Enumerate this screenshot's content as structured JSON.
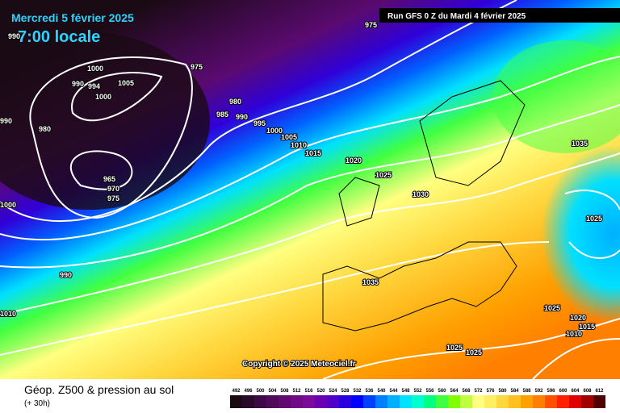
{
  "header": {
    "date": "Mercredi 5 février 2025",
    "time": "7:00 locale",
    "run": "Run GFS 0 Z du Mardi 4 février 2025"
  },
  "copyright": "Copyright © 2025 Meteociel.fr",
  "footer": {
    "title": "Géop. Z500 & pression au sol",
    "lead": "(+ 30h)"
  },
  "isobar_labels": [
    "990",
    "975",
    "1000",
    "975",
    "990",
    "994",
    "1005",
    "1000",
    "990",
    "980",
    "980",
    "985",
    "990",
    "995",
    "1000",
    "1005",
    "1010",
    "1015",
    "1020",
    "1025",
    "1030",
    "965",
    "970",
    "975",
    "1000",
    "1035",
    "1025",
    "990",
    "1035",
    "1010",
    "1025",
    "1020",
    "1015",
    "1010",
    "1025",
    "1025"
  ],
  "legend": {
    "values": [
      492,
      496,
      500,
      504,
      508,
      512,
      516,
      520,
      524,
      528,
      532,
      536,
      540,
      544,
      548,
      552,
      556,
      560,
      564,
      568,
      572,
      576,
      580,
      584,
      588,
      592,
      596,
      600,
      604,
      608,
      612
    ],
    "colors": [
      "#1a0a14",
      "#2a0a2a",
      "#3d0a45",
      "#4f0a5a",
      "#600a70",
      "#700a85",
      "#7a0a9a",
      "#6a00b0",
      "#5000c8",
      "#2800e0",
      "#0000ff",
      "#0040ff",
      "#0080ff",
      "#00b0ff",
      "#00e0ff",
      "#00ffd0",
      "#00ff80",
      "#40ff40",
      "#80ff00",
      "#c0ff40",
      "#ffff80",
      "#ffee60",
      "#ffd840",
      "#ffc020",
      "#ffa000",
      "#ff8000",
      "#ff5000",
      "#ff2000",
      "#e00000",
      "#a00000",
      "#500000"
    ]
  }
}
